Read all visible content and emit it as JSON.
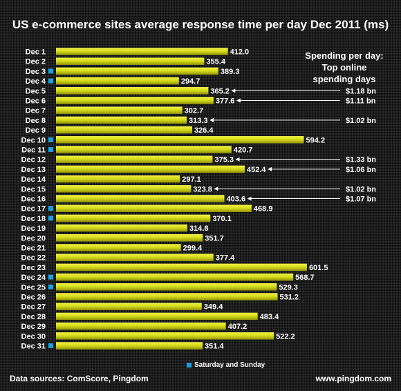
{
  "chart_data": {
    "type": "bar",
    "orientation": "horizontal",
    "title": "US e-commerce sites average response time per day Dec 2011 (ms)",
    "categories": [
      "Dec 1",
      "Dec 2",
      "Dec 3",
      "Dec 4",
      "Dec 5",
      "Dec 6",
      "Dec 7",
      "Dec 8",
      "Dec 9",
      "Dec 10",
      "Dec 11",
      "Dec 12",
      "Dec 13",
      "Dec 14",
      "Dec 15",
      "Dec 16",
      "Dec 17",
      "Dec 18",
      "Dec 19",
      "Dec 20",
      "Dec 21",
      "Dec 22",
      "Dec 23",
      "Dec 24",
      "Dec 25",
      "Dec 26",
      "Dec 27",
      "Dec 28",
      "Dec 29",
      "Dec 30",
      "Dec 31"
    ],
    "values": [
      412.0,
      355.4,
      389.3,
      294.7,
      365.2,
      377.6,
      302.7,
      313.3,
      326.4,
      594.2,
      420.7,
      375.3,
      452.4,
      297.1,
      323.8,
      403.6,
      468.9,
      370.1,
      314.8,
      351.7,
      299.4,
      377.4,
      601.5,
      568.7,
      529.3,
      531.2,
      349.4,
      483.4,
      407.2,
      522.2,
      351.4
    ],
    "value_labels": [
      "412.0",
      "355.4",
      "389.3",
      "294.7",
      "365.2",
      "377.6",
      "302.7",
      "313.3",
      "326.4",
      "594.2",
      "420.7",
      "375.3",
      "452.4",
      "297.1",
      "323.8",
      "403.6",
      "468.9",
      "370.1",
      "314.8",
      "351.7",
      "299.4",
      "377.4",
      "601.5",
      "568.7",
      "529.3",
      "531.2",
      "349.4",
      "483.4",
      "407.2",
      "522.2",
      "351.4"
    ],
    "weekend": [
      "Dec 3",
      "Dec 4",
      "Dec 10",
      "Dec 11",
      "Dec 17",
      "Dec 18",
      "Dec 24",
      "Dec 25",
      "Dec 31"
    ],
    "spending_annotations": [
      {
        "category": "Dec 5",
        "label": "$1.18 bn"
      },
      {
        "category": "Dec 6",
        "label": "$1.11 bn"
      },
      {
        "category": "Dec 8",
        "label": "$1.02 bn"
      },
      {
        "category": "Dec 12",
        "label": "$1.33 bn"
      },
      {
        "category": "Dec 13",
        "label": "$1.06 bn"
      },
      {
        "category": "Dec 15",
        "label": "$1.02 bn"
      },
      {
        "category": "Dec 16",
        "label": "$1.07 bn"
      }
    ],
    "annotation_title": "Spending per day: Top online spending days",
    "legend": "Saturday and Sunday",
    "xlim": [
      0,
      620
    ],
    "colors": {
      "bar": "#c8cc12",
      "bar_light": "#f2f545",
      "weekend_marker": "#1a9fe0",
      "arrow": "#ffffff"
    }
  },
  "legend_note_lines": [
    "Spending per day:",
    "Top online",
    "spending days"
  ],
  "footer": {
    "sources": "Data sources: ComScore, Pingdom",
    "site": "www.pingdom.com"
  }
}
